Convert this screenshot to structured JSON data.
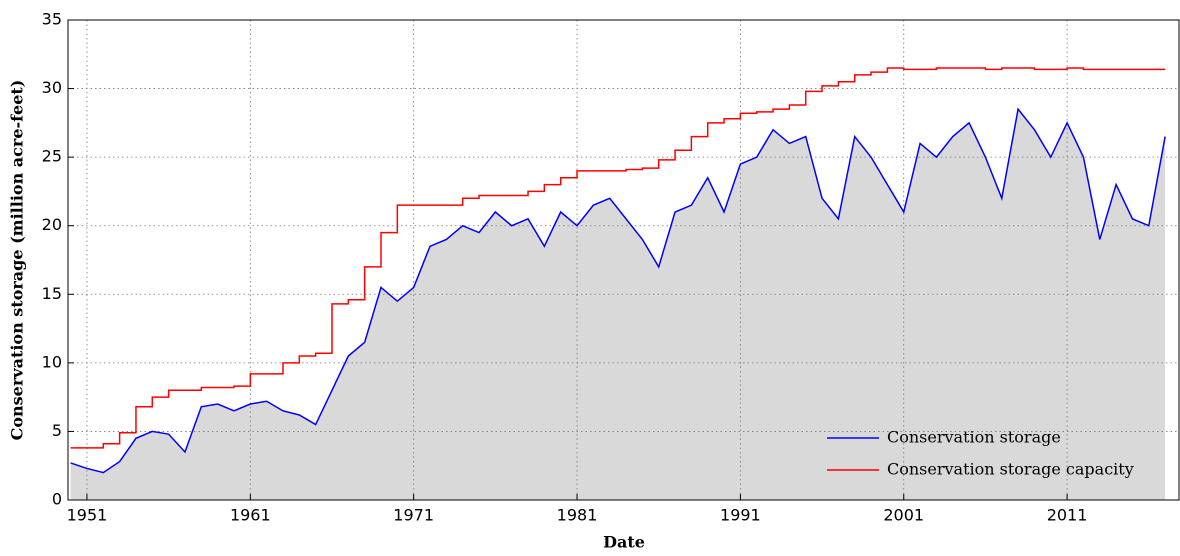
{
  "chart_data": {
    "type": "line",
    "x_label": "Date",
    "y_label": "Conservation storage (million acre-feet)",
    "x": [
      1950,
      1951,
      1952,
      1953,
      1954,
      1955,
      1956,
      1957,
      1958,
      1959,
      1960,
      1961,
      1962,
      1963,
      1964,
      1965,
      1966,
      1967,
      1968,
      1969,
      1970,
      1971,
      1972,
      1973,
      1974,
      1975,
      1976,
      1977,
      1978,
      1979,
      1980,
      1981,
      1982,
      1983,
      1984,
      1985,
      1986,
      1987,
      1988,
      1989,
      1990,
      1991,
      1992,
      1993,
      1994,
      1995,
      1996,
      1997,
      1998,
      1999,
      2000,
      2001,
      2002,
      2003,
      2004,
      2005,
      2006,
      2007,
      2008,
      2009,
      2010,
      2011,
      2012,
      2013,
      2014,
      2015,
      2016,
      2017
    ],
    "series": [
      {
        "name": "Conservation storage",
        "color": "#0000ff",
        "fill": "#d9d9d9",
        "values": [
          2.7,
          2.3,
          2.0,
          2.8,
          4.5,
          5.0,
          4.8,
          3.5,
          6.8,
          7.0,
          6.5,
          7.0,
          7.2,
          6.5,
          6.2,
          5.5,
          8.0,
          10.5,
          11.5,
          15.5,
          14.5,
          15.5,
          18.5,
          19.0,
          20.0,
          19.5,
          21.0,
          20.0,
          20.5,
          18.5,
          21.0,
          20.0,
          21.5,
          22.0,
          20.5,
          19.0,
          17.0,
          21.0,
          21.5,
          23.5,
          21.0,
          24.5,
          25.0,
          27.0,
          26.0,
          26.5,
          22.0,
          20.5,
          26.5,
          25.0,
          23.0,
          21.0,
          26.0,
          25.0,
          26.5,
          27.5,
          25.0,
          22.0,
          28.5,
          27.0,
          25.0,
          27.5,
          25.0,
          19.0,
          23.0,
          20.5,
          20.0,
          26.5
        ]
      },
      {
        "name": "Conservation storage capacity",
        "color": "#ff0000",
        "step": true,
        "values": [
          3.8,
          3.8,
          4.1,
          4.9,
          6.8,
          7.5,
          8.0,
          8.0,
          8.2,
          8.2,
          8.3,
          9.2,
          9.2,
          10.0,
          10.5,
          10.7,
          14.3,
          14.6,
          17.0,
          19.5,
          21.5,
          21.5,
          21.5,
          21.5,
          22.0,
          22.2,
          22.2,
          22.2,
          22.5,
          23.0,
          23.5,
          24.0,
          24.0,
          24.0,
          24.1,
          24.2,
          24.8,
          25.5,
          26.5,
          27.5,
          27.8,
          28.2,
          28.3,
          28.5,
          28.8,
          29.8,
          30.2,
          30.5,
          31.0,
          31.2,
          31.5,
          31.4,
          31.4,
          31.5,
          31.5,
          31.5,
          31.4,
          31.5,
          31.5,
          31.4,
          31.4,
          31.5,
          31.4,
          31.4,
          31.4,
          31.4,
          31.4,
          31.4
        ]
      }
    ],
    "xlim": [
      1949.84,
      2017.85
    ],
    "xticks": [
      1951,
      1961,
      1971,
      1981,
      1991,
      2001,
      2011
    ],
    "ylim": [
      0,
      35
    ],
    "yticks": [
      0,
      5,
      10,
      15,
      20,
      25,
      30,
      35
    ],
    "grid": true,
    "legend": "lower right"
  }
}
